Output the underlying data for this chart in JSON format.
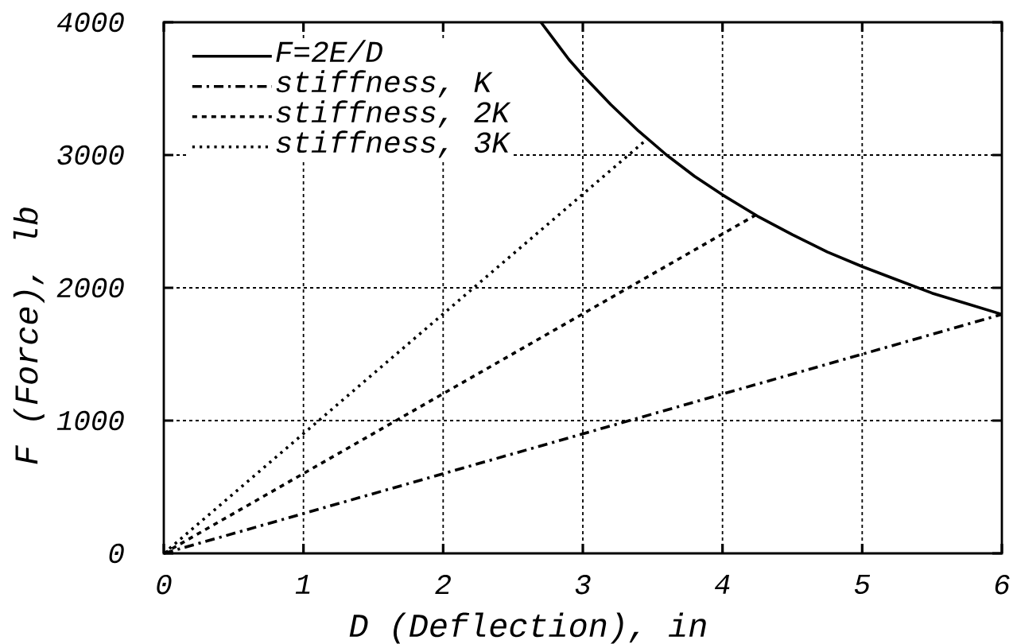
{
  "chart_data": {
    "type": "line",
    "xlabel": "D (Deflection), in",
    "ylabel": "F (Force), lb",
    "xlim": [
      0,
      6
    ],
    "ylim": [
      0,
      4000
    ],
    "xticks": [
      0,
      1,
      2,
      3,
      4,
      5,
      6
    ],
    "yticks": [
      0,
      1000,
      2000,
      3000,
      4000
    ],
    "grid": true,
    "legend": "top left",
    "series": [
      {
        "name": "F=2E/D",
        "color": "#000000",
        "line_style": "solid",
        "x": [
          2.7,
          2.8,
          2.9,
          3,
          3.2,
          3.4,
          3.6,
          3.8,
          4,
          4.25,
          4.5,
          4.75,
          5,
          5.25,
          5.5,
          5.75,
          6
        ],
        "values": [
          4000,
          3860,
          3720,
          3600,
          3380,
          3180,
          3000,
          2840,
          2700,
          2540,
          2400,
          2270,
          2160,
          2060,
          1960,
          1880,
          1800
        ]
      },
      {
        "name": "stiffness, K",
        "color": "#000000",
        "line_style": "dashdot",
        "x": [
          0,
          6
        ],
        "values": [
          0,
          1800
        ]
      },
      {
        "name": "stiffness, 2K",
        "color": "#000000",
        "line_style": "dashed",
        "x": [
          0,
          4.24
        ],
        "values": [
          0,
          2550
        ]
      },
      {
        "name": "stiffness, 3K",
        "color": "#000000",
        "line_style": "dotted",
        "x": [
          0,
          3.46
        ],
        "values": [
          0,
          3120
        ]
      }
    ]
  }
}
